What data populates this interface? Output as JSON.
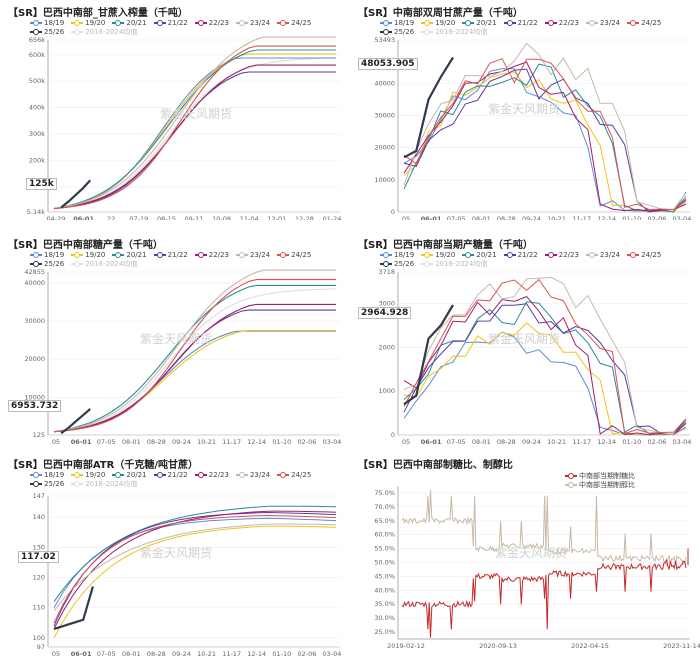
{
  "watermark": "紫金天风期货",
  "colors": {
    "s18_19": "#5b8dd6",
    "s19_20": "#f0c419",
    "s20_21": "#2c8b9a",
    "s21_22": "#5b3aa0",
    "s22_23": "#9c1f6e",
    "s23_24": "#c8b8a8",
    "s24_25": "#d9534f",
    "s25_26": "#2e3b4e",
    "band": "#e0e0e0",
    "ratio_sugar": "#c62828",
    "ratio_other": "#c9b9a6"
  },
  "legend": {
    "items": [
      {
        "label": "18/19",
        "color": "#5b8dd6"
      },
      {
        "label": "19/20",
        "color": "#f0c419"
      },
      {
        "label": "20/21",
        "color": "#2c8b9a"
      },
      {
        "label": "21/22",
        "color": "#5b3aa0"
      },
      {
        "label": "22/23",
        "color": "#9c1f6e"
      },
      {
        "label": "23/24",
        "color": "#c8b8a8"
      },
      {
        "label": "24/25",
        "color": "#d9534f"
      },
      {
        "label": "25/26",
        "color": "#2e3b4e"
      }
    ],
    "band_label": "2018-2024均值"
  },
  "chart_data": [
    {
      "id": "cane-cum",
      "type": "line",
      "title": "【SR】巴西中南部_甘蔗入榨量（千吨）",
      "ylim": [
        5140,
        656000
      ],
      "y_ticks": [
        {
          "v": 5140,
          "label": "5.14k"
        },
        {
          "v": 100000,
          "label": "100k"
        },
        {
          "v": 200000,
          "label": "200k"
        },
        {
          "v": 300000,
          "label": "300k"
        },
        {
          "v": 400000,
          "label": "400k"
        },
        {
          "v": 500000,
          "label": "500k"
        },
        {
          "v": 600000,
          "label": "600k"
        },
        {
          "v": 656000,
          "label": "656k"
        }
      ],
      "x_ticks": [
        "04-29",
        "06-01",
        "22",
        "07-19",
        "08-15",
        "09-11",
        "10-08",
        "11-04",
        "12-01",
        "12-28",
        "01-24"
      ],
      "current_label": "125k",
      "current_value": 125000,
      "current_tick": "06-01",
      "final": {
        "18/19": 575000,
        "19/20": 590000,
        "20/21": 605000,
        "21/22": 522000,
        "22/23": 548000,
        "23/24": 654000,
        "24/25": 620000
      },
      "current": [
        22000,
        45000,
        70000,
        95000,
        125000
      ]
    },
    {
      "id": "cane-bi",
      "type": "line",
      "title": "【SR】中南部双周甘蔗产量（千吨）",
      "ylim": [
        0,
        53493
      ],
      "y_ticks": [
        {
          "v": 0,
          "label": "0"
        },
        {
          "v": 10000,
          "label": "10000"
        },
        {
          "v": 20000,
          "label": "20000"
        },
        {
          "v": 30000,
          "label": "30000"
        },
        {
          "v": 40000,
          "label": "40000"
        },
        {
          "v": 53493,
          "label": "53493"
        }
      ],
      "x_ticks": [
        "05",
        "06-01",
        "07-05",
        "08-01",
        "08-28",
        "09-24",
        "10-21",
        "11-17",
        "12-14",
        "01-10",
        "02-06",
        "03-04"
      ],
      "current_label": "48053.905",
      "current_value": 48053.905,
      "current_tick": "06-01",
      "peaks": {
        "18/19": 44000,
        "19/20": 46000,
        "20/21": 47500,
        "21/22": 43000,
        "22/23": 47000,
        "23/24": 52500,
        "24/25": 48500
      },
      "current": [
        17000,
        19000,
        35000,
        42000,
        48053.905
      ]
    },
    {
      "id": "sugar-cum",
      "type": "line",
      "title": "【SR】巴西中南部糖产量（千吨）",
      "ylim": [
        125,
        42855
      ],
      "y_ticks": [
        {
          "v": 125,
          "label": "125"
        },
        {
          "v": 10000,
          "label": "10000"
        },
        {
          "v": 20000,
          "label": "20000"
        },
        {
          "v": 30000,
          "label": "30000"
        },
        {
          "v": 40000,
          "label": "40000"
        },
        {
          "v": 42855,
          "label": "42855"
        }
      ],
      "x_ticks": [
        "05",
        "06-01",
        "07-05",
        "08-01",
        "08-28",
        "09-24",
        "10-21",
        "11-17",
        "12-14",
        "01-10",
        "02-06",
        "03-04"
      ],
      "current_label": "6953.732",
      "current_value": 6953.732,
      "current_tick": "06-01",
      "final": {
        "18/19": 26500,
        "19/20": 26700,
        "20/21": 38500,
        "21/22": 32000,
        "22/23": 33500,
        "23/24": 42500,
        "24/25": 40000
      },
      "current": [
        600,
        2000,
        3700,
        5300,
        6953.732
      ]
    },
    {
      "id": "sugar-bi",
      "type": "line",
      "title": "【SR】巴西中南部当期产糖量（千吨）",
      "ylim": [
        0,
        3718
      ],
      "y_ticks": [
        {
          "v": 0,
          "label": "0"
        },
        {
          "v": 1000,
          "label": "1000"
        },
        {
          "v": 2000,
          "label": "2000"
        },
        {
          "v": 3000,
          "label": "3000"
        },
        {
          "v": 3718,
          "label": "3718"
        }
      ],
      "x_ticks": [
        "05",
        "06-01",
        "07-05",
        "08-01",
        "08-28",
        "09-24",
        "10-21",
        "11-17",
        "12-14",
        "01-10",
        "02-06",
        "03-04"
      ],
      "current_label": "2964.928",
      "current_value": 2964.928,
      "current_tick": "06-01",
      "peaks": {
        "18/19": 2300,
        "19/20": 2500,
        "20/21": 3000,
        "21/22": 3000,
        "22/23": 3300,
        "23/24": 3700,
        "24/25": 3500
      },
      "current": [
        700,
        900,
        2200,
        2500,
        2964.928
      ]
    },
    {
      "id": "atr",
      "type": "line",
      "title": "【SR】巴西中南部ATR（千克糖/吨甘蔗）",
      "ylim": [
        97,
        147
      ],
      "y_ticks": [
        {
          "v": 97,
          "label": "97"
        },
        {
          "v": 100,
          "label": "100"
        },
        {
          "v": 110,
          "label": "110"
        },
        {
          "v": 120,
          "label": "120"
        },
        {
          "v": 130,
          "label": "130"
        },
        {
          "v": 140,
          "label": "140"
        },
        {
          "v": 147,
          "label": "147"
        }
      ],
      "x_ticks": [
        "05",
        "06-01",
        "07-05",
        "08-01",
        "08-28",
        "09-24",
        "10-21",
        "11-17",
        "12-14",
        "01-10",
        "02-06",
        "03-04"
      ],
      "current_label": "117.02",
      "current_value": 117.02,
      "current_tick": "06-01",
      "start": {
        "18/19": 110,
        "19/20": 100,
        "20/21": 112,
        "21/22": 104,
        "22/23": 103,
        "23/24": 109,
        "24/25": 105
      },
      "final": {
        "18/19": 140,
        "19/20": 138,
        "20/21": 145,
        "21/22": 142,
        "22/23": 143,
        "23/24": 139,
        "24/25": 141
      },
      "current": [
        103,
        104,
        105,
        106,
        117.02
      ]
    },
    {
      "id": "ratio",
      "type": "line",
      "title": "【SR】巴西中南部制糖比、制醇比",
      "ylim": [
        22.5,
        77.5
      ],
      "y_ticks": [
        {
          "v": 25,
          "label": "25.0%"
        },
        {
          "v": 30,
          "label": "30.0%"
        },
        {
          "v": 35,
          "label": "35.0%"
        },
        {
          "v": 40,
          "label": "40.0%"
        },
        {
          "v": 45,
          "label": "45.0%"
        },
        {
          "v": 50,
          "label": "50.0%"
        },
        {
          "v": 55,
          "label": "55.0%"
        },
        {
          "v": 60,
          "label": "60.0%"
        },
        {
          "v": 65,
          "label": "65.0%"
        },
        {
          "v": 70,
          "label": "70.0%"
        },
        {
          "v": 75,
          "label": "75.0%"
        }
      ],
      "x_ticks": [
        "2019-02-12",
        "2020-09-13",
        "2022-04-15",
        "2023-11-14"
      ],
      "series": [
        {
          "name": "中南部当期制糖比",
          "color": "#c62828"
        },
        {
          "name": "中南部当期制醇比",
          "color": "#c9b9a6"
        }
      ],
      "current_label": "",
      "current_value": 49,
      "current_tick": ""
    }
  ]
}
